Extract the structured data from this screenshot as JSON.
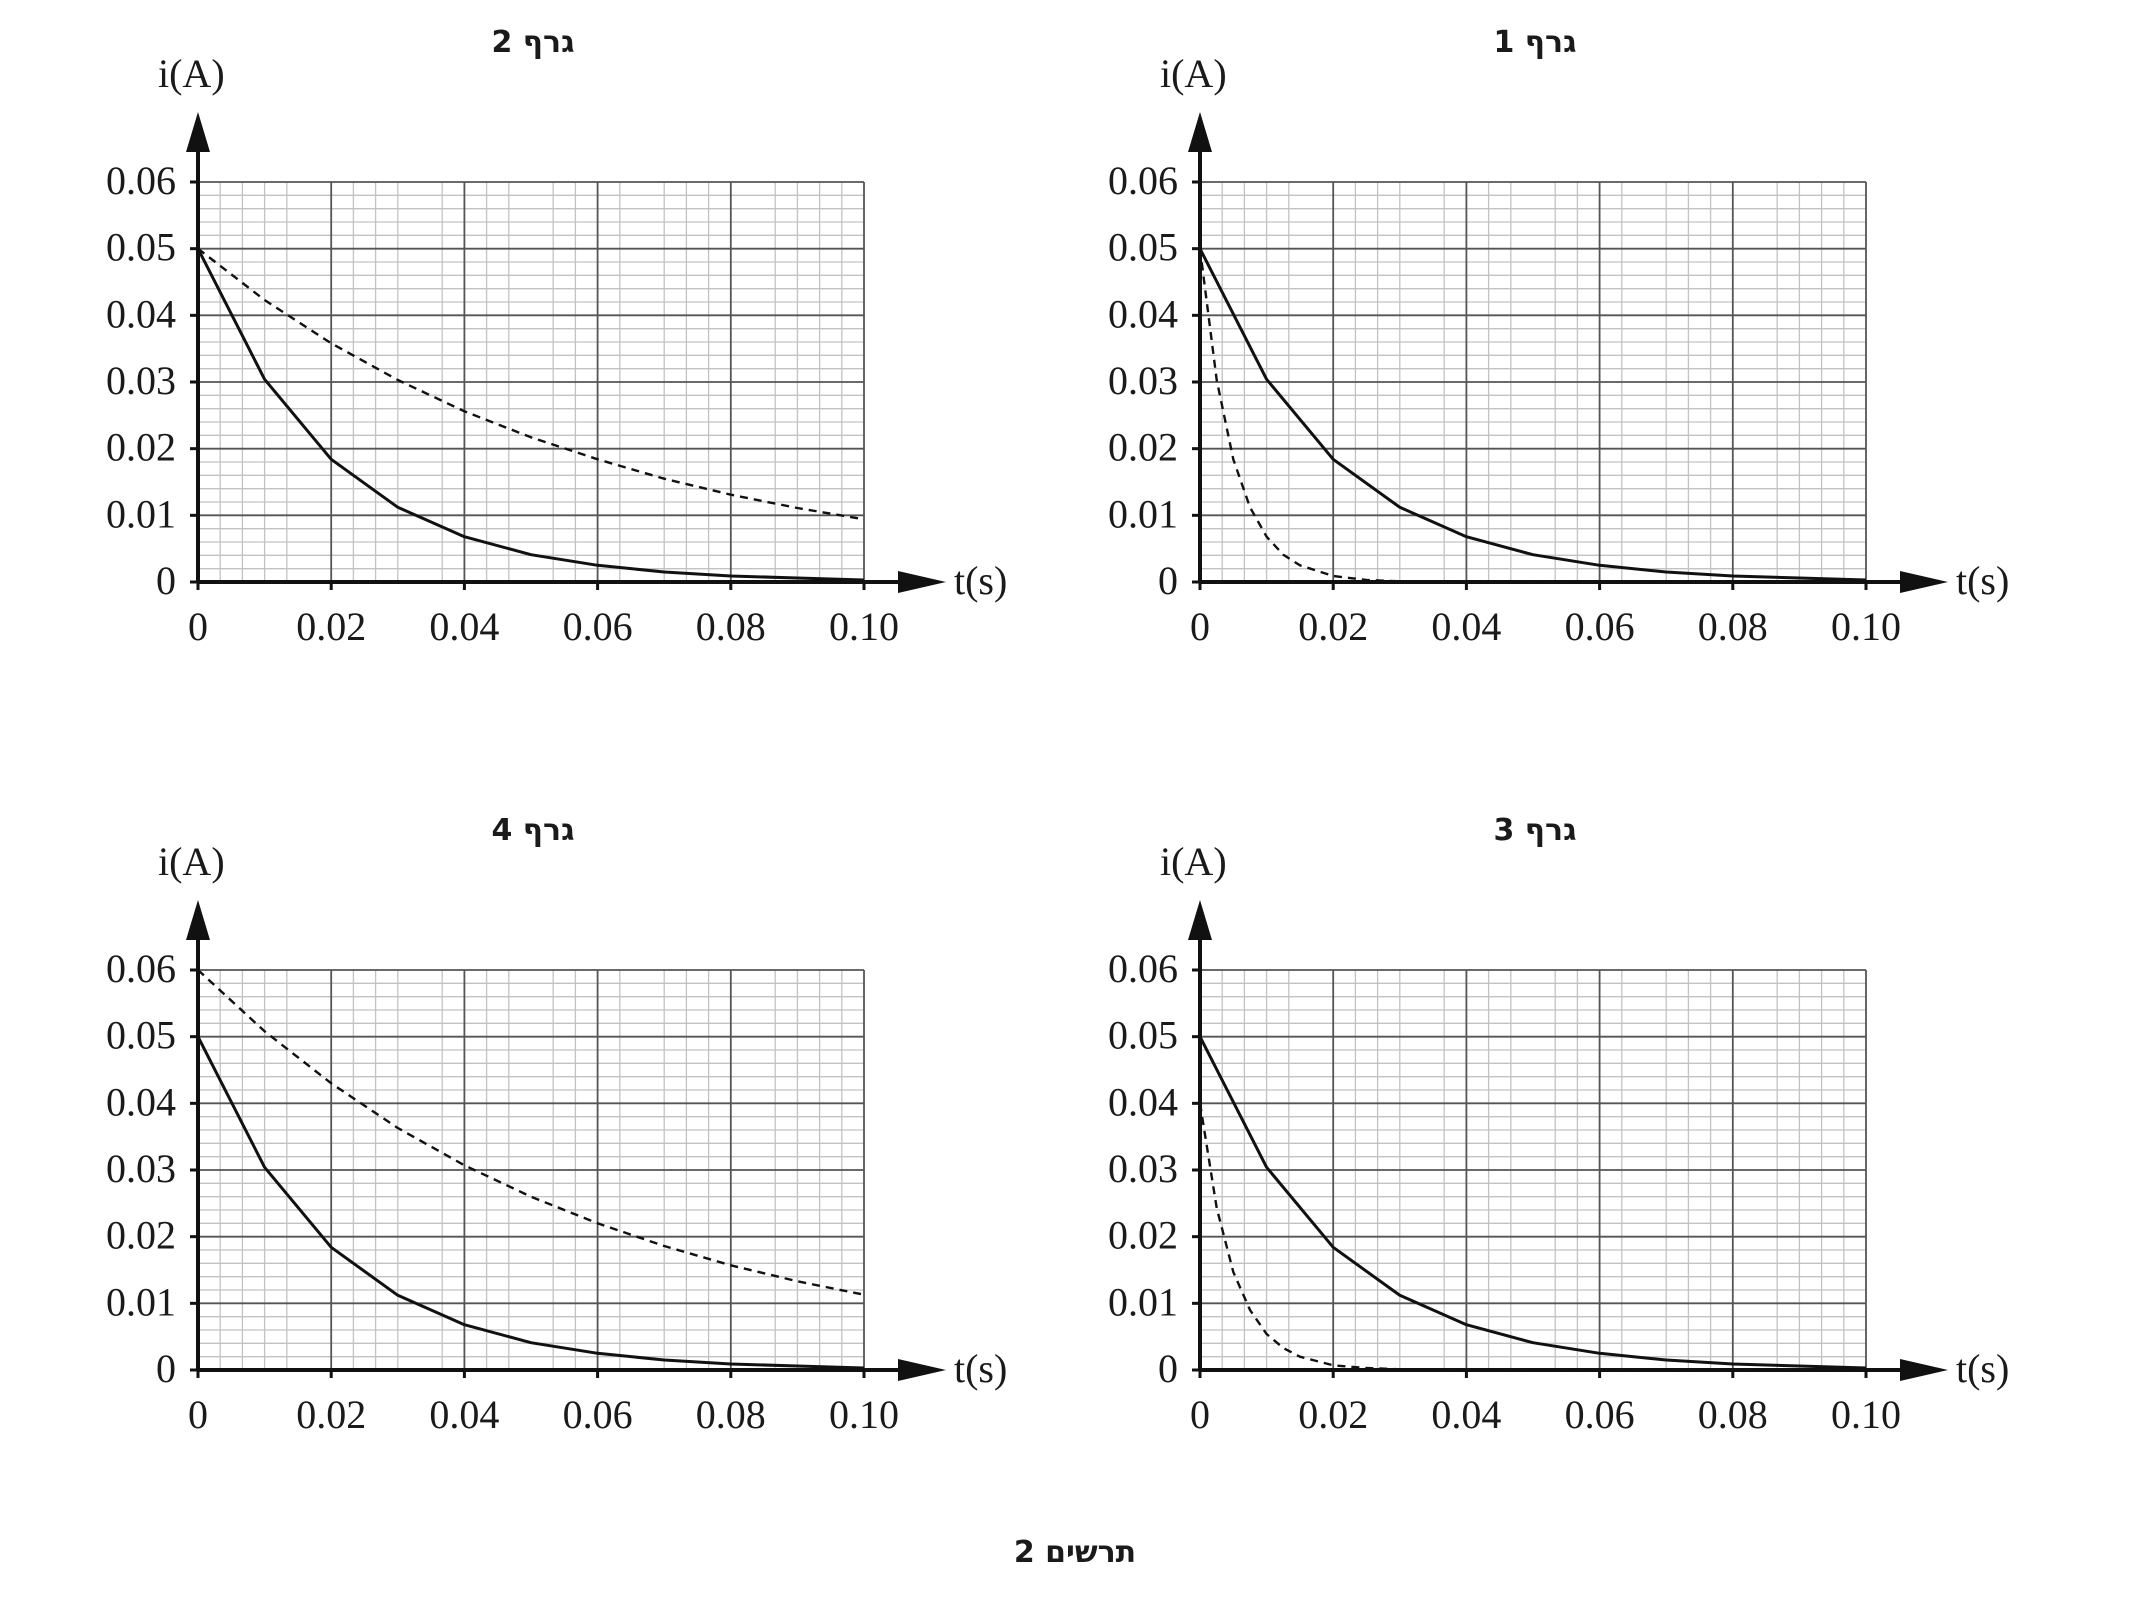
{
  "figure": {
    "caption": "תרשים 2"
  },
  "chart_data": [
    {
      "type": "line",
      "title": "גרף 1",
      "xlabel": "t(s)",
      "ylabel": "i(A)",
      "xlim": [
        0,
        0.1
      ],
      "ylim": [
        0,
        0.06
      ],
      "xticks": [
        "0",
        "0.02",
        "0.04",
        "0.06",
        "0.08",
        "0.10"
      ],
      "yticks": [
        "0",
        "0.01",
        "0.02",
        "0.03",
        "0.04",
        "0.05",
        "0.06"
      ],
      "grid": true,
      "series": [
        {
          "style": "solid",
          "x": [
            0,
            0.01,
            0.02,
            0.03,
            0.04,
            0.05,
            0.06,
            0.07,
            0.08,
            0.09,
            0.1
          ],
          "y": [
            0.05,
            0.0304,
            0.0184,
            0.0112,
            0.0068,
            0.0041,
            0.0025,
            0.0015,
            0.0009,
            0.0006,
            0.0003
          ]
        },
        {
          "style": "dashed",
          "x": [
            0,
            0.0025,
            0.005,
            0.0075,
            0.01,
            0.0125,
            0.015,
            0.02,
            0.025,
            0.03,
            0.04,
            0.05,
            0.1
          ],
          "y": [
            0.05,
            0.0303,
            0.0184,
            0.0112,
            0.0068,
            0.0041,
            0.0025,
            0.0009,
            0.0003,
            0.0001,
            0.0,
            0.0,
            0.0
          ]
        }
      ]
    },
    {
      "type": "line",
      "title": "גרף 2",
      "xlabel": "t(s)",
      "ylabel": "i(A)",
      "xlim": [
        0,
        0.1
      ],
      "ylim": [
        0,
        0.06
      ],
      "xticks": [
        "0",
        "0.02",
        "0.04",
        "0.06",
        "0.08",
        "0.10"
      ],
      "yticks": [
        "0",
        "0.01",
        "0.02",
        "0.03",
        "0.04",
        "0.05",
        "0.06"
      ],
      "grid": true,
      "series": [
        {
          "style": "solid",
          "x": [
            0,
            0.01,
            0.02,
            0.03,
            0.04,
            0.05,
            0.06,
            0.07,
            0.08,
            0.09,
            0.1
          ],
          "y": [
            0.05,
            0.0304,
            0.0184,
            0.0112,
            0.0068,
            0.0041,
            0.0025,
            0.0015,
            0.0009,
            0.0006,
            0.0003
          ]
        },
        {
          "style": "dashed",
          "x": [
            0,
            0.01,
            0.02,
            0.03,
            0.04,
            0.05,
            0.06,
            0.07,
            0.08,
            0.09,
            0.1
          ],
          "y": [
            0.05,
            0.0423,
            0.0358,
            0.0303,
            0.0256,
            0.0217,
            0.0184,
            0.0155,
            0.0131,
            0.0111,
            0.0094
          ]
        }
      ]
    },
    {
      "type": "line",
      "title": "גרף 3",
      "xlabel": "t(s)",
      "ylabel": "i(A)",
      "xlim": [
        0,
        0.1
      ],
      "ylim": [
        0,
        0.06
      ],
      "xticks": [
        "0",
        "0.02",
        "0.04",
        "0.06",
        "0.08",
        "0.10"
      ],
      "yticks": [
        "0",
        "0.01",
        "0.02",
        "0.03",
        "0.04",
        "0.05",
        "0.06"
      ],
      "grid": true,
      "series": [
        {
          "style": "solid",
          "x": [
            0,
            0.01,
            0.02,
            0.03,
            0.04,
            0.05,
            0.06,
            0.07,
            0.08,
            0.09,
            0.1
          ],
          "y": [
            0.05,
            0.0304,
            0.0184,
            0.0112,
            0.0068,
            0.0041,
            0.0025,
            0.0015,
            0.0009,
            0.0006,
            0.0003
          ]
        },
        {
          "style": "dashed",
          "x": [
            0,
            0.0025,
            0.005,
            0.0075,
            0.01,
            0.0125,
            0.015,
            0.02,
            0.025,
            0.03,
            0.04,
            0.05,
            0.1
          ],
          "y": [
            0.04,
            0.0243,
            0.0147,
            0.009,
            0.0054,
            0.0033,
            0.002,
            0.0007,
            0.0003,
            0.0001,
            0.0,
            0.0,
            0.0
          ]
        }
      ]
    },
    {
      "type": "line",
      "title": "גרף 4",
      "xlabel": "t(s)",
      "ylabel": "i(A)",
      "xlim": [
        0,
        0.1
      ],
      "ylim": [
        0,
        0.06
      ],
      "xticks": [
        "0",
        "0.02",
        "0.04",
        "0.06",
        "0.08",
        "0.10"
      ],
      "yticks": [
        "0",
        "0.01",
        "0.02",
        "0.03",
        "0.04",
        "0.05",
        "0.06"
      ],
      "grid": true,
      "series": [
        {
          "style": "solid",
          "x": [
            0,
            0.01,
            0.02,
            0.03,
            0.04,
            0.05,
            0.06,
            0.07,
            0.08,
            0.09,
            0.1
          ],
          "y": [
            0.05,
            0.0304,
            0.0184,
            0.0112,
            0.0068,
            0.0041,
            0.0025,
            0.0015,
            0.0009,
            0.0006,
            0.0003
          ]
        },
        {
          "style": "dashed",
          "x": [
            0,
            0.01,
            0.02,
            0.03,
            0.04,
            0.05,
            0.06,
            0.07,
            0.08,
            0.09,
            0.1
          ],
          "y": [
            0.06,
            0.0508,
            0.043,
            0.0363,
            0.0307,
            0.026,
            0.022,
            0.0186,
            0.0157,
            0.0133,
            0.0113
          ]
        }
      ]
    }
  ]
}
